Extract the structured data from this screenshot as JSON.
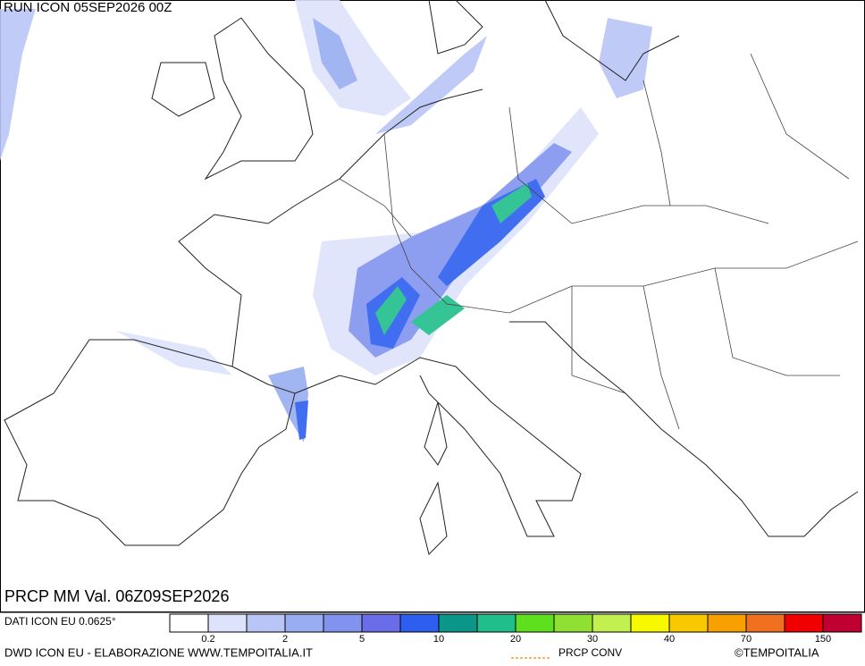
{
  "header": {
    "run": "RUN ICON 05SEP2026 00Z"
  },
  "footer": {
    "title": "PRCP MM Val. 06Z09SEP2026",
    "source": "DATI ICON EU 0.0625°",
    "credit": "DWD ICON EU - ELABORAZIONE WWW.TEMPOITALIA.IT",
    "conv": "PRCP CONV",
    "brand": "©TEMPOITALIA"
  },
  "legend": {
    "colors": [
      "#ffffff",
      "#dde3fb",
      "#bac5f7",
      "#99adf2",
      "#8193ef",
      "#6b6ce8",
      "#2d5ef0",
      "#0b968a",
      "#20be8a",
      "#5fe01e",
      "#8fe032",
      "#c2f050",
      "#f8f800",
      "#f8c800",
      "#f8a000",
      "#f07020",
      "#f00000",
      "#c00030"
    ],
    "labels": [
      "0.2",
      "2",
      "5",
      "10",
      "20",
      "30",
      "40",
      "70",
      "150"
    ]
  }
}
